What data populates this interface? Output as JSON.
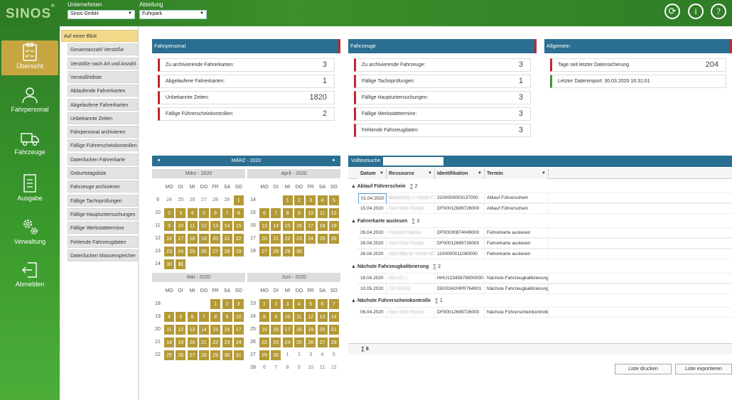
{
  "logo": "SINOS",
  "logo_reg": "®",
  "header": {
    "unternehmen_label": "Unternehmen",
    "unternehmen_value": "Sinos GmbH",
    "abteilung_label": "Abteilung",
    "abteilung_value": "Fuhrpark"
  },
  "nav": [
    {
      "label": "Übersicht"
    },
    {
      "label": "Fahrpersonal"
    },
    {
      "label": "Fahrzeuge"
    },
    {
      "label": "Ausgabe"
    },
    {
      "label": "Verwaltung"
    },
    {
      "label": "Abmelden"
    }
  ],
  "submenu": [
    "Auf einen Blick",
    "Gesamtanzahl Verstöße",
    "Verstöße nach Art und Anzahl",
    "Verstoßhitliste",
    "Ablaufende Fahrerkarten",
    "Abgelaufene Fahrerkarten",
    "Unbekannte Zeiten",
    "Fahrpersonal archivieren",
    "Fällige Führerscheinkontrollen",
    "Datenlücken Fahrerkarte",
    "Geburtstagsliste",
    "Fahrzeuge archivieren",
    "Fällige Tachoprüfungen",
    "Fällige Hauptuntersuchungen",
    "Fällige Werkstatttermine",
    "Fehlende Fahrzeugdaten",
    "Datenlücken Massenspeicher"
  ],
  "panels": {
    "fahrpersonal": {
      "title": "Fahrpersonal",
      "rows": [
        {
          "label": "Zu archivierende Fahrerkarten:",
          "value": "3"
        },
        {
          "label": "Abgelaufene Fahrerkarten:",
          "value": "1"
        },
        {
          "label": "Unbekannte Zeiten:",
          "value": "1820"
        },
        {
          "label": "Fällige Führerscheinkontrollen:",
          "value": "2"
        }
      ]
    },
    "fahrzeuge": {
      "title": "Fahrzeuge",
      "rows": [
        {
          "label": "Zu archivierende Fahrzeuge:",
          "value": "3"
        },
        {
          "label": "Fällige Tachoprüfungen:",
          "value": "1"
        },
        {
          "label": "Fällige Hauptuntersuchungen:",
          "value": "3"
        },
        {
          "label": "Fällige Werkstatttermine:",
          "value": "3"
        },
        {
          "label": "Fehlende Fahrzeugdaten:",
          "value": "3"
        }
      ]
    },
    "allgemein": {
      "title": "Allgemein",
      "rows": [
        {
          "label": "Tage seit letzter Datensicherung",
          "value": "204"
        },
        {
          "label": "Letzter Datenimport: 30.03.2020 16:31:01",
          "value": ""
        }
      ]
    }
  },
  "calendar": {
    "header": "MÄRZ - 2020",
    "prev": "◄",
    "next": "►",
    "dows": [
      "MO",
      "DI",
      "MI",
      "DO",
      "FR",
      "SA",
      "SO"
    ],
    "months": [
      {
        "title": "März - 2020",
        "weeks": [
          "9",
          "10",
          "11",
          "12",
          "13",
          "14"
        ],
        "cells": [
          "24",
          "25",
          "26",
          "27",
          "28",
          "29",
          "1",
          "2",
          "3",
          "4",
          "5",
          "6",
          "7",
          "8",
          "9",
          "10",
          "11",
          "12",
          "13",
          "14",
          "15",
          "16",
          "17",
          "18",
          "19",
          "20",
          "21",
          "22",
          "23",
          "24",
          "25",
          "26",
          "27",
          "28",
          "29",
          "30",
          "31",
          "",
          "",
          "",
          "",
          ""
        ],
        "inStart": 6,
        "inEnd": 36,
        "today": 36
      },
      {
        "title": "April - 2020",
        "weeks": [
          "14",
          "15",
          "16",
          "17",
          "18"
        ],
        "cells": [
          "",
          "",
          "1",
          "2",
          "3",
          "4",
          "5",
          "6",
          "7",
          "8",
          "9",
          "10",
          "11",
          "12",
          "13",
          "14",
          "15",
          "16",
          "17",
          "18",
          "19",
          "20",
          "21",
          "22",
          "23",
          "24",
          "25",
          "26",
          "27",
          "28",
          "29",
          "30",
          "",
          "",
          "",
          ""
        ],
        "inStart": 2,
        "inEnd": 31,
        "today": -1
      },
      {
        "title": "Mai - 2020",
        "weeks": [
          "18",
          "19",
          "20",
          "21",
          "22"
        ],
        "cells": [
          "",
          "",
          "",
          "",
          "1",
          "2",
          "3",
          "4",
          "5",
          "6",
          "7",
          "8",
          "9",
          "10",
          "11",
          "12",
          "13",
          "14",
          "15",
          "16",
          "17",
          "18",
          "19",
          "20",
          "21",
          "22",
          "23",
          "24",
          "25",
          "26",
          "27",
          "28",
          "29",
          "30",
          "31"
        ],
        "inStart": 4,
        "inEnd": 34,
        "today": -1
      },
      {
        "title": "Juni - 2020",
        "weeks": [
          "23",
          "24",
          "25",
          "26",
          "27",
          "28"
        ],
        "cells": [
          "1",
          "2",
          "3",
          "4",
          "5",
          "6",
          "7",
          "8",
          "9",
          "10",
          "11",
          "12",
          "13",
          "14",
          "15",
          "16",
          "17",
          "18",
          "19",
          "20",
          "21",
          "22",
          "23",
          "24",
          "25",
          "26",
          "27",
          "28",
          "29",
          "30",
          "1",
          "2",
          "3",
          "4",
          "5",
          "6",
          "7",
          "8",
          "9",
          "10",
          "11",
          "12"
        ],
        "inStart": 0,
        "inEnd": 29,
        "today": -1
      }
    ]
  },
  "table": {
    "search_label": "Volltextsuche",
    "search_value": "",
    "columns": [
      "Datum",
      "Ressource",
      "Identifikation",
      "Termin"
    ],
    "groups": [
      {
        "title": "Ablauf Führerschein",
        "count": "∑ 2",
        "rows": [
          [
            "01.04.2020",
            "Musterfrau Y. Kinde F.",
            "3100000003137000",
            "Ablauf Führerschein"
          ],
          [
            "15.04.2020",
            "Herr Felix Florian",
            "DF00012689726000",
            "Ablauf Führerschein"
          ]
        ]
      },
      {
        "title": "Fahrerkarte auslesen",
        "count": "∑ 3",
        "rows": [
          [
            "26.04.2020",
            "Frauvon Patrick",
            "DF00030874049000",
            "Fahrerkarte auslesen"
          ],
          [
            "26.04.2020",
            "Herr Felix Florian",
            "DF00012689726000",
            "Fahrerkarte auslesen"
          ],
          [
            "26.04.2020",
            "Herr Max M. Kinde 80",
            "1100000011090000",
            "Fahrerkarte auslesen"
          ]
        ]
      },
      {
        "title": "Nächste Fahrzeugkalibrierung",
        "count": "∑ 2",
        "rows": [
          [
            "18.04.2020",
            "HH-UX 1",
            "HHU123456789000001",
            "Nächste Fahrzeugkalibrierung"
          ],
          [
            "10.05.2020",
            "TH TE 001",
            "DE00342HPR764001",
            "Nächste Fahrzeugkalibrierung"
          ]
        ]
      },
      {
        "title": "Nächste Führerscheinkontrolle",
        "count": "∑ 1",
        "rows": [
          [
            "06.04.2020",
            "Herr Felix Florian",
            "DF00012689726000",
            "Nächste Führerscheinkontrolle"
          ]
        ]
      }
    ],
    "footer": "∑ 8"
  },
  "buttons": {
    "print": "Liste drucken",
    "export": "Liste exportieren"
  },
  "colors": {
    "green": "#3a9a2c",
    "blue": "#2a6e92",
    "gold": "#b49a36",
    "red": "#c1272d"
  }
}
